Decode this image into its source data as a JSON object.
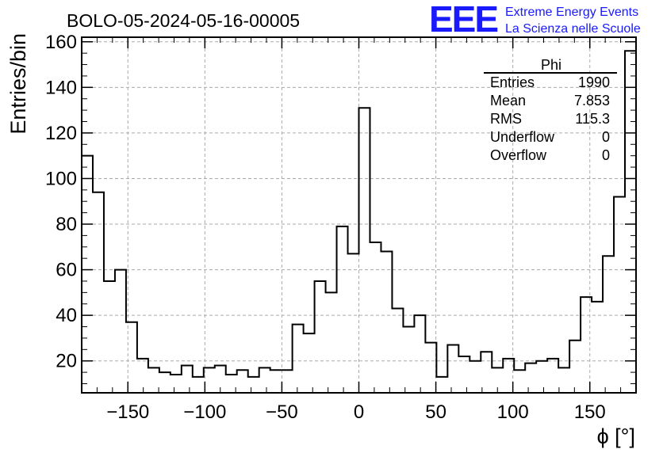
{
  "header": {
    "run_title": "BOLO-05-2024-05-16-00005",
    "logo_text": "EEE",
    "logo_line1": "Extreme Energy Events",
    "logo_line2": "La Scienza nelle Scuole"
  },
  "stats": {
    "title": "Phi",
    "rows": [
      {
        "label": "Entries",
        "value": "1990"
      },
      {
        "label": "Mean",
        "value": "7.853"
      },
      {
        "label": "RMS",
        "value": "115.3"
      },
      {
        "label": "Underflow",
        "value": "0"
      },
      {
        "label": "Overflow",
        "value": "0"
      }
    ]
  },
  "colors": {
    "logo": "#1a1aff",
    "grid": "#aaaaaa",
    "line": "#000000"
  },
  "chart_data": {
    "type": "histogram",
    "xlabel": "ϕ [°]",
    "ylabel": "Entries/bin",
    "xlim": [
      -180,
      180
    ],
    "ylim": [
      6,
      162
    ],
    "bin_width": 7.2,
    "grid": true,
    "x_ticks": [
      -150,
      -100,
      -50,
      0,
      50,
      100,
      150
    ],
    "x_tick_labels": [
      "−150",
      "−100",
      "−50",
      "0",
      "50",
      "100",
      "150"
    ],
    "y_ticks": [
      20,
      40,
      60,
      80,
      100,
      120,
      140,
      160
    ],
    "y_tick_labels": [
      "20",
      "40",
      "60",
      "80",
      "100",
      "120",
      "140",
      "160"
    ],
    "values": [
      110,
      94,
      55,
      60,
      37,
      21,
      17,
      15,
      14,
      18,
      13,
      17,
      18,
      14,
      16,
      13,
      17,
      16,
      16,
      36,
      32,
      55,
      50,
      79,
      67,
      131,
      72,
      68,
      43,
      35,
      40,
      28,
      13,
      27,
      22,
      20,
      24,
      17,
      21,
      16,
      19,
      20,
      21,
      17,
      29,
      48,
      46,
      66,
      92,
      156
    ]
  }
}
